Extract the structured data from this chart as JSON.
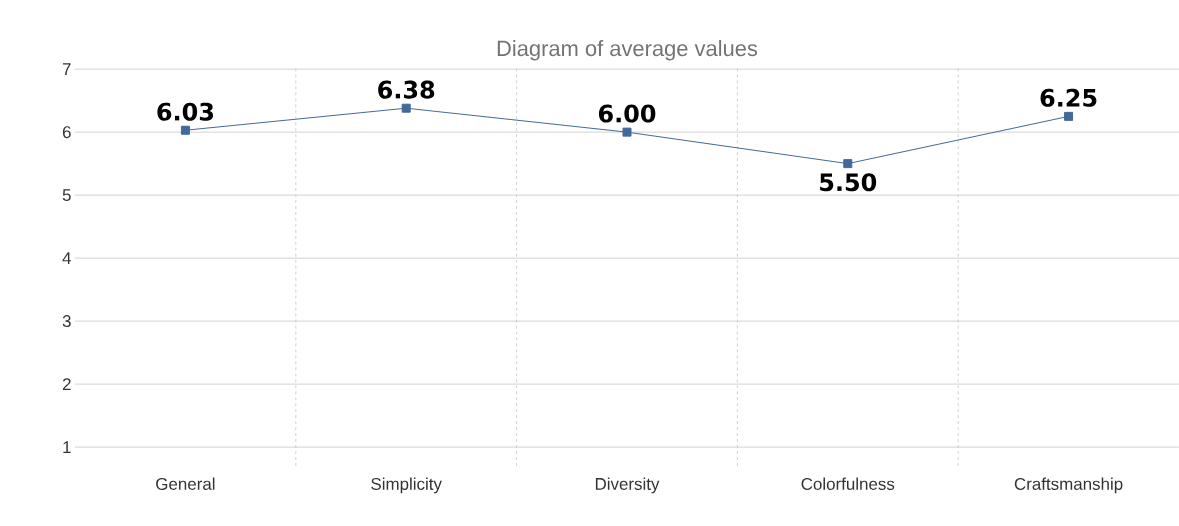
{
  "chart_data": {
    "type": "line",
    "title": "Diagram of average values",
    "categories": [
      "General",
      "Simplicity",
      "Diversity",
      "Colorfulness",
      "Craftsmanship"
    ],
    "series": [
      {
        "color": "#41699a",
        "values": [
          6.03,
          6.38,
          6.0,
          5.5,
          6.25
        ]
      }
    ],
    "value_labels": [
      "6.03",
      "6.38",
      "6.00",
      "5.50",
      "6.25"
    ],
    "ylim": [
      0.7,
      7.05
    ],
    "yticks": [
      1,
      2,
      3,
      4,
      5,
      6,
      7
    ],
    "grid": true,
    "marker": "square",
    "line_style": "solid"
  }
}
